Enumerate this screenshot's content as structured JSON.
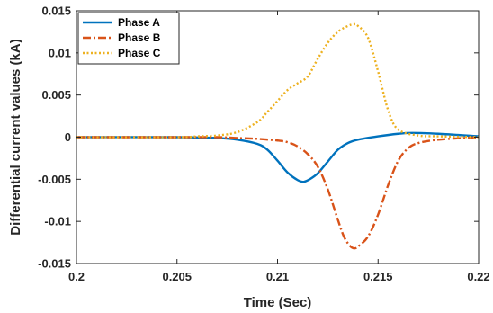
{
  "chart_data": {
    "type": "line",
    "xlabel": "Time (Sec)",
    "ylabel": "Differential current values (kA)",
    "xlim": [
      0.2,
      0.22
    ],
    "ylim": [
      -0.015,
      0.015
    ],
    "x_ticks": [
      0.2,
      0.205,
      0.21,
      0.215,
      0.22
    ],
    "x_tick_labels": [
      "0.2",
      "0.205",
      "0.21",
      "0.215",
      "0.22"
    ],
    "y_ticks": [
      0.015,
      0.01,
      0.005,
      0,
      -0.005,
      -0.01,
      -0.015
    ],
    "y_tick_labels": [
      "0.015",
      "0.01",
      "0.005",
      "0",
      "-0.005",
      "-0.01",
      "-0.015"
    ],
    "grid": false,
    "legend_position": "top-left",
    "series": [
      {
        "name": "Phase A",
        "color": "#0072BD",
        "dash": "solid",
        "x": [
          0.2,
          0.205,
          0.207,
          0.208,
          0.209,
          0.2095,
          0.21,
          0.2105,
          0.211,
          0.2113,
          0.2116,
          0.212,
          0.2125,
          0.213,
          0.2135,
          0.214,
          0.215,
          0.216,
          0.2167,
          0.218,
          0.22
        ],
        "y": [
          0.0,
          0.0,
          -0.0001,
          -0.0003,
          -0.0008,
          -0.0015,
          -0.0028,
          -0.0042,
          -0.0051,
          -0.0053,
          -0.005,
          -0.0043,
          -0.0029,
          -0.0015,
          -0.0007,
          -0.0003,
          0.0001,
          0.0004,
          0.0005,
          0.0004,
          0.0001
        ]
      },
      {
        "name": "Phase B",
        "color": "#D95319",
        "dash": "dashdot",
        "x": [
          0.2,
          0.205,
          0.207,
          0.208,
          0.209,
          0.21,
          0.2105,
          0.211,
          0.2115,
          0.212,
          0.2125,
          0.213,
          0.2133,
          0.2136,
          0.2138,
          0.214,
          0.2145,
          0.215,
          0.2155,
          0.216,
          0.2165,
          0.217,
          0.218,
          0.22
        ],
        "y": [
          0.0,
          0.0,
          0.0,
          -0.0001,
          -0.0002,
          -0.0004,
          -0.0006,
          -0.0011,
          -0.002,
          -0.0035,
          -0.0062,
          -0.0098,
          -0.0118,
          -0.0129,
          -0.0132,
          -0.013,
          -0.0118,
          -0.0092,
          -0.0057,
          -0.0028,
          -0.0013,
          -0.0007,
          -0.0003,
          0.0
        ]
      },
      {
        "name": "Phase C",
        "color": "#EDB120",
        "dash": "dotted",
        "x": [
          0.2,
          0.205,
          0.206,
          0.207,
          0.208,
          0.209,
          0.2095,
          0.21,
          0.2105,
          0.211,
          0.2115,
          0.212,
          0.2125,
          0.213,
          0.2135,
          0.2138,
          0.214,
          0.2145,
          0.215,
          0.2155,
          0.216,
          0.217,
          0.218,
          0.22
        ],
        "y": [
          0.0,
          0.0,
          0.0001,
          0.0002,
          0.0006,
          0.0018,
          0.003,
          0.0043,
          0.0056,
          0.0064,
          0.0072,
          0.0093,
          0.0112,
          0.0125,
          0.0132,
          0.0134,
          0.0132,
          0.0118,
          0.0078,
          0.0032,
          0.0009,
          0.0002,
          0.0001,
          0.0
        ]
      }
    ]
  }
}
